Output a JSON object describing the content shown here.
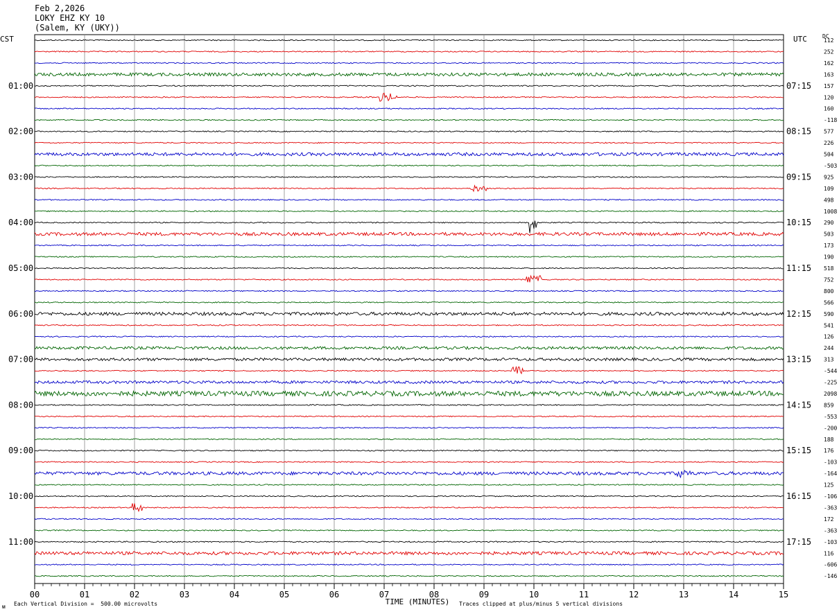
{
  "header": {
    "date": "Feb 2,2026",
    "station": "LOKY EHZ KY 10",
    "location": "(Salem, KY (UKY))"
  },
  "left_tz": "CST",
  "right_tz": "UTC",
  "dc_label": "DC",
  "footer": {
    "scale_note": "Each Vertical Division =  500.00 microvolts",
    "clip_note": "Traces clipped at plus/minus 5 vertical divisions",
    "corner_mark": "ᴍ"
  },
  "colors": {
    "cycle": [
      "#000000",
      "#e00000",
      "#0000c8",
      "#006400"
    ],
    "grid": "#888888"
  },
  "chart_data": {
    "type": "line",
    "title": "LOKY EHZ KY 10",
    "xlabel": "TIME (MINUTES)",
    "xlim": [
      0,
      15
    ],
    "x_ticks": [
      "00",
      "01",
      "02",
      "03",
      "04",
      "05",
      "06",
      "07",
      "08",
      "09",
      "10",
      "11",
      "12",
      "13",
      "14",
      "15"
    ],
    "left_time_labels": [
      "01:00",
      "02:00",
      "03:00",
      "04:00",
      "05:00",
      "06:00",
      "07:00",
      "08:00",
      "09:00",
      "10:00",
      "11:00"
    ],
    "right_time_labels": [
      "07:15",
      "08:15",
      "09:15",
      "10:15",
      "11:15",
      "12:15",
      "13:15",
      "14:15",
      "15:15",
      "16:15",
      "17:15"
    ],
    "traces_per_hour": 4,
    "dc_offsets": [
      "112",
      "252",
      "162",
      "163",
      "157",
      "120",
      "160",
      "-118",
      "577",
      "226",
      "504",
      "-503",
      "925",
      "109",
      "498",
      "1008",
      "290",
      "503",
      "173",
      "190",
      "518",
      "752",
      "800",
      "566",
      "590",
      "541",
      "126",
      "244",
      "313",
      "-544",
      "-225",
      "2098",
      "859",
      "-553",
      "-200",
      "188",
      "176",
      "-103",
      "-164",
      "125",
      "-106",
      "-363",
      "172",
      "-363",
      "-103",
      "116",
      "-606",
      "-146"
    ],
    "events": [
      {
        "trace": 5,
        "minute": 6.9,
        "duration": 0.35,
        "amplitude": 6
      },
      {
        "trace": 13,
        "minute": 8.75,
        "duration": 0.3,
        "amplitude": 5
      },
      {
        "trace": 16,
        "minute": 9.9,
        "duration": 0.15,
        "amplitude": 15
      },
      {
        "trace": 21,
        "minute": 9.85,
        "duration": 0.3,
        "amplitude": 6
      },
      {
        "trace": 29,
        "minute": 9.55,
        "duration": 0.25,
        "amplitude": 6
      },
      {
        "trace": 38,
        "minute": 12.85,
        "duration": 0.3,
        "amplitude": 6
      },
      {
        "trace": 41,
        "minute": 1.95,
        "duration": 0.2,
        "amplitude": 6
      }
    ]
  }
}
